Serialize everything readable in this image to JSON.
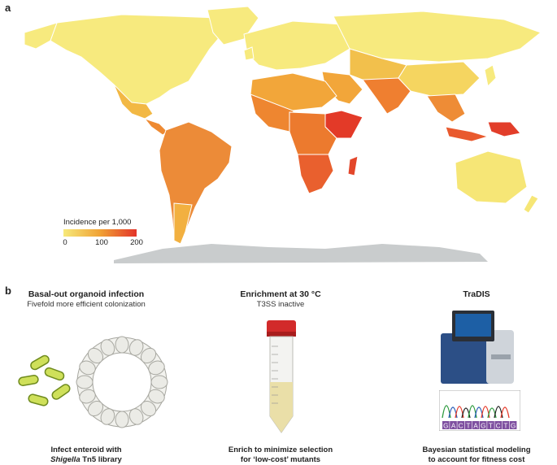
{
  "panel_a": {
    "letter": "a",
    "legend": {
      "title": "Incidence per 1,000",
      "ticks": [
        "0",
        "100",
        "200"
      ],
      "colors": {
        "low": "#f6e97a",
        "mid": "#f0a235",
        "high": "#e3342a",
        "antarctica": "#c9cccd"
      }
    }
  },
  "panel_b": {
    "letter": "b",
    "steps": [
      {
        "title": "Basal-out organoid infection",
        "subtitle": "Fivefold more efficient colonization",
        "caption_line1": "Infect enteroid with",
        "caption_italic": "Shigella",
        "caption_line2_rest": " Tn5 library"
      },
      {
        "title": "Enrichment at 30 °C",
        "subtitle": "T3SS inactive",
        "caption_line1": "Enrich to minimize selection",
        "caption_line2": "for ‘low-cost’ mutants"
      },
      {
        "title": "TraDIS",
        "subtitle": "",
        "caption_line1": "Bayesian statistical modeling",
        "caption_line2": "to account for fitness cost",
        "sequence": [
          "G",
          "A",
          "C",
          "T",
          "A",
          "G",
          "T",
          "C",
          "T",
          "G"
        ]
      }
    ]
  }
}
